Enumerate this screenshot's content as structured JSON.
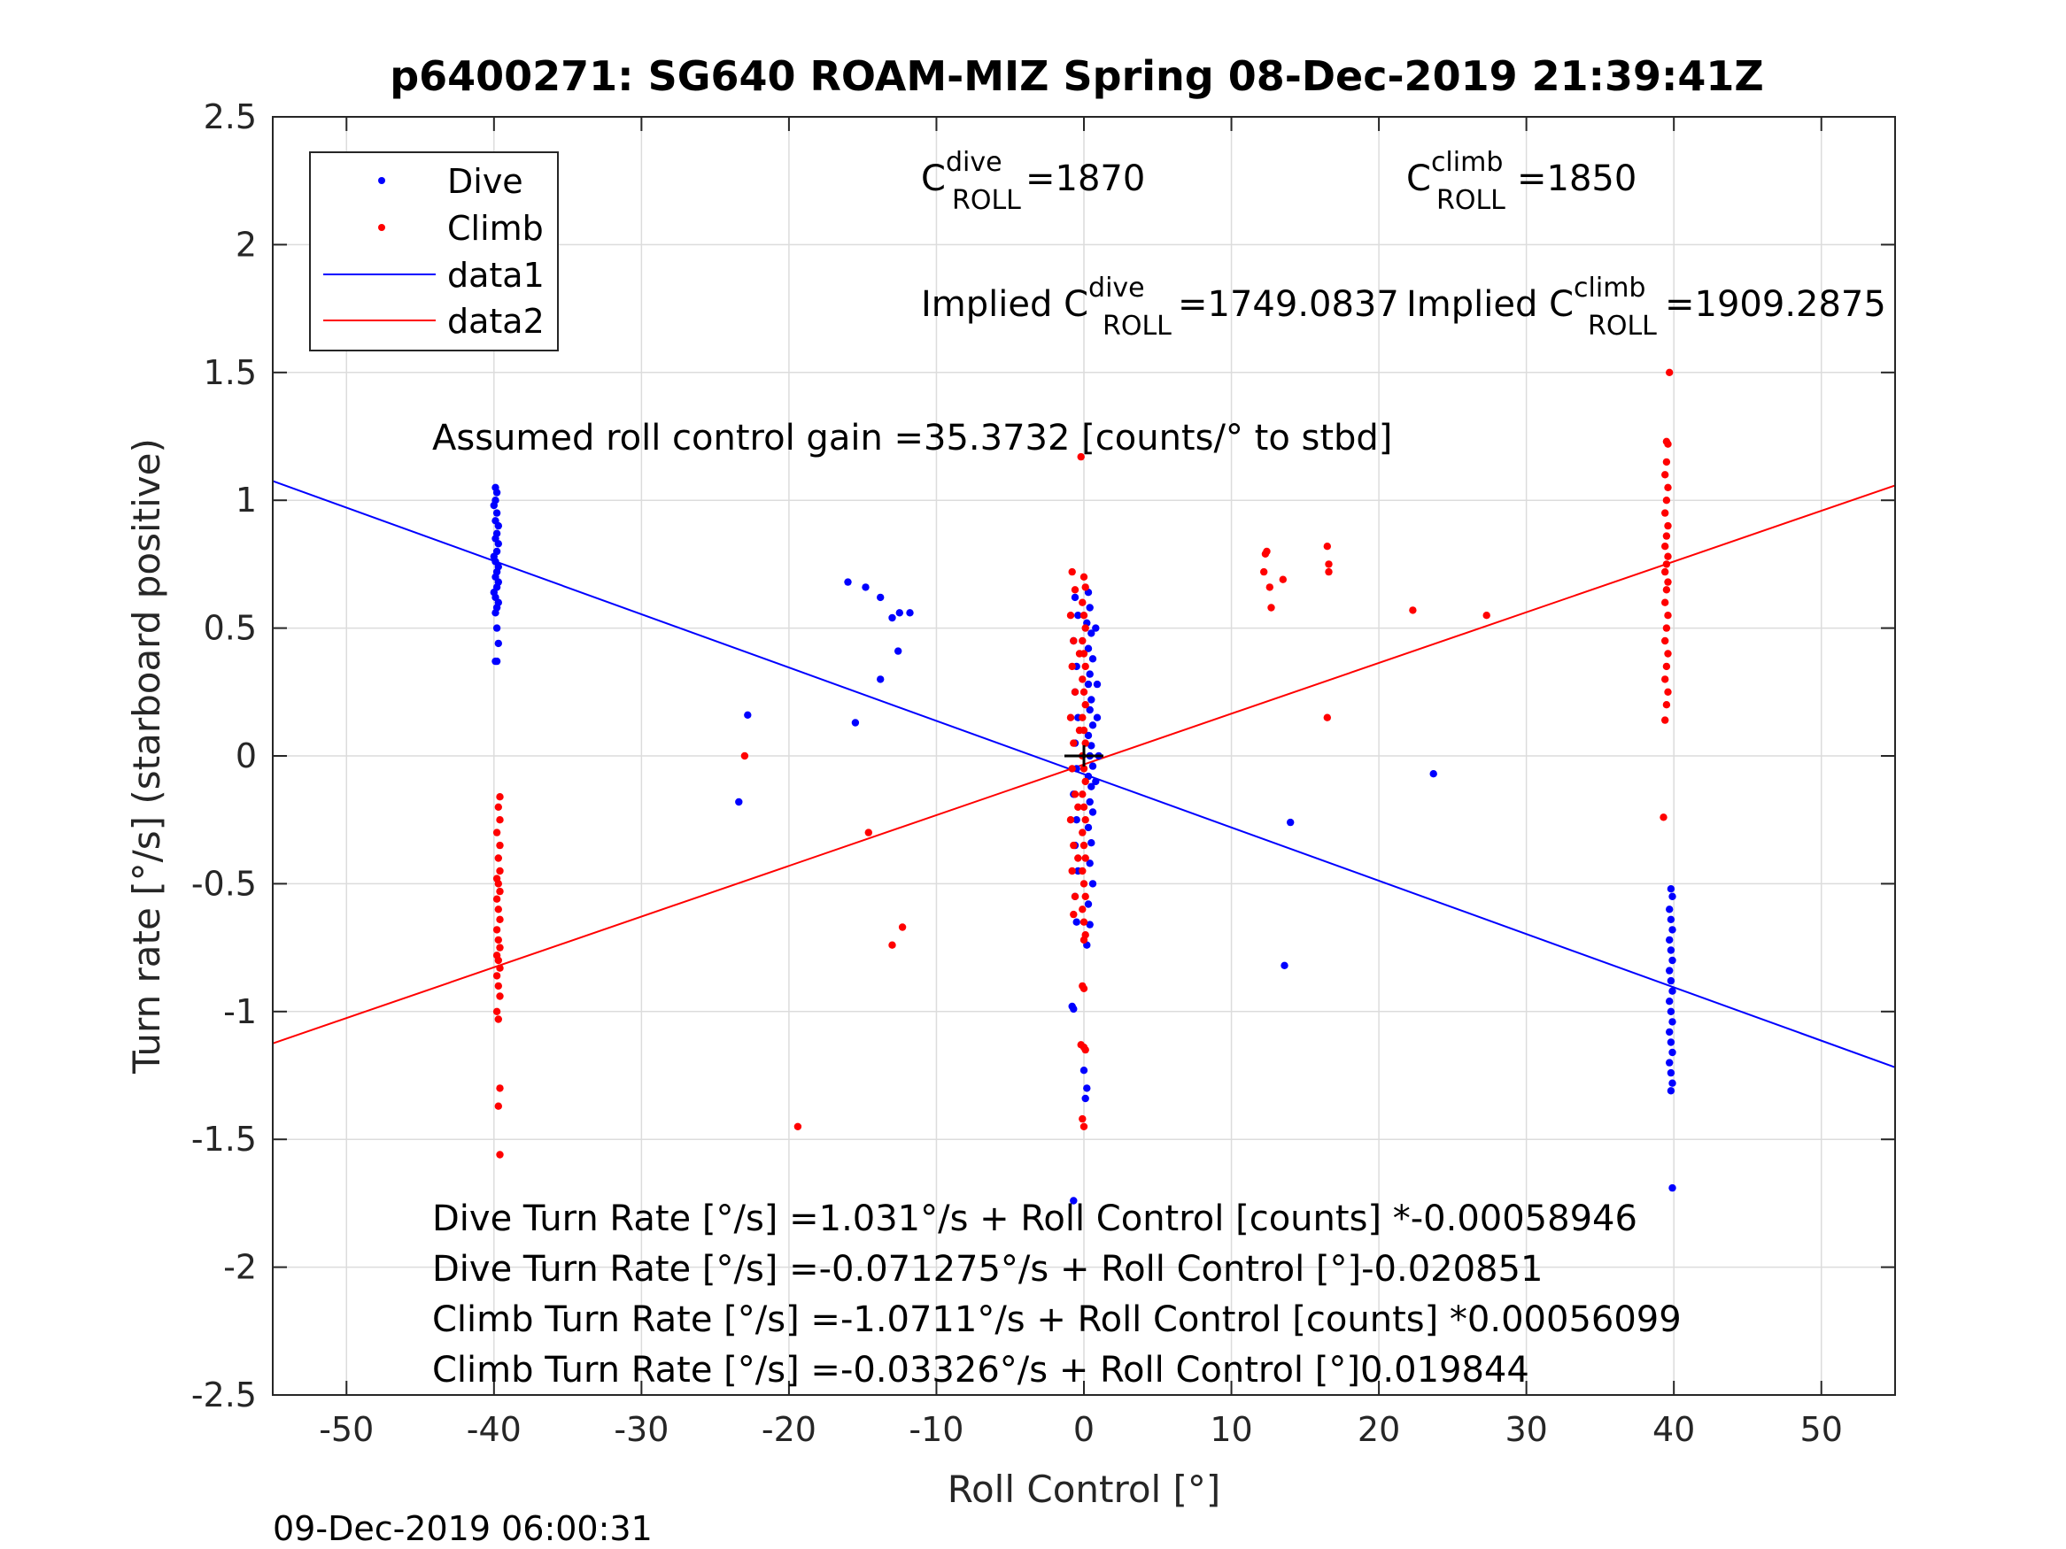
{
  "chart_data": {
    "type": "scatter",
    "title": "p6400271: SG640 ROAM-MIZ Spring 08-Dec-2019 21:39:41Z",
    "xlabel": "Roll Control [°]",
    "ylabel": "Turn rate [°/s] (starboard positive)",
    "xlim": [
      -55,
      55
    ],
    "ylim": [
      -2.5,
      2.5
    ],
    "xticks": [
      -50,
      -40,
      -30,
      -20,
      -10,
      0,
      10,
      20,
      30,
      40,
      50
    ],
    "xtick_labels": [
      "-50",
      "-40",
      "-30",
      "-20",
      "-10",
      "0",
      "10",
      "20",
      "30",
      "40",
      "50"
    ],
    "yticks": [
      -2.5,
      -2,
      -1.5,
      -1,
      -0.5,
      0,
      0.5,
      1,
      1.5,
      2,
      2.5
    ],
    "ytick_labels": [
      "-2.5",
      "-2",
      "-1.5",
      "-1",
      "-0.5",
      "0",
      "0.5",
      "1",
      "1.5",
      "2",
      "2.5"
    ],
    "grid": true,
    "legend_position": "top-left",
    "legend": [
      {
        "label": "Dive",
        "kind": "marker",
        "color": "#0000ff"
      },
      {
        "label": "Climb",
        "kind": "marker",
        "color": "#ff0000"
      },
      {
        "label": "data1",
        "kind": "line",
        "color": "#0000ff"
      },
      {
        "label": "data2",
        "kind": "line",
        "color": "#ff0000"
      }
    ],
    "series": [
      {
        "name": "Dive",
        "kind": "scatter",
        "color": "#0000ff",
        "points": [
          [
            -39.9,
            1.05
          ],
          [
            -39.8,
            1.03
          ],
          [
            -39.9,
            1.0
          ],
          [
            -40.0,
            0.98
          ],
          [
            -39.8,
            0.95
          ],
          [
            -39.9,
            0.92
          ],
          [
            -39.7,
            0.9
          ],
          [
            -39.8,
            0.87
          ],
          [
            -39.9,
            0.85
          ],
          [
            -39.7,
            0.83
          ],
          [
            -39.8,
            0.8
          ],
          [
            -40.0,
            0.78
          ],
          [
            -39.9,
            0.76
          ],
          [
            -39.7,
            0.74
          ],
          [
            -39.8,
            0.72
          ],
          [
            -39.9,
            0.7
          ],
          [
            -39.7,
            0.68
          ],
          [
            -39.8,
            0.66
          ],
          [
            -40.0,
            0.64
          ],
          [
            -39.9,
            0.62
          ],
          [
            -39.7,
            0.6
          ],
          [
            -39.8,
            0.58
          ],
          [
            -39.9,
            0.56
          ],
          [
            -39.8,
            0.5
          ],
          [
            -39.7,
            0.44
          ],
          [
            -39.9,
            0.37
          ],
          [
            -39.8,
            0.37
          ],
          [
            -16.0,
            0.68
          ],
          [
            -14.8,
            0.66
          ],
          [
            -13.8,
            0.62
          ],
          [
            -13.0,
            0.54
          ],
          [
            -12.5,
            0.56
          ],
          [
            -11.8,
            0.56
          ],
          [
            -12.6,
            0.41
          ],
          [
            -13.8,
            0.3
          ],
          [
            -15.5,
            0.13
          ],
          [
            -22.8,
            0.16
          ],
          [
            -23.4,
            -0.18
          ],
          [
            -0.6,
            0.62
          ],
          [
            -0.4,
            0.55
          ],
          [
            -0.7,
            0.45
          ],
          [
            -0.5,
            0.35
          ],
          [
            -0.6,
            0.25
          ],
          [
            -0.4,
            0.15
          ],
          [
            -0.6,
            0.05
          ],
          [
            -0.5,
            -0.05
          ],
          [
            -0.7,
            -0.15
          ],
          [
            -0.5,
            -0.25
          ],
          [
            -0.6,
            -0.35
          ],
          [
            -0.4,
            -0.45
          ],
          [
            -0.6,
            -0.55
          ],
          [
            -0.5,
            -0.65
          ],
          [
            0.3,
            0.64
          ],
          [
            0.4,
            0.58
          ],
          [
            0.2,
            0.52
          ],
          [
            0.5,
            0.48
          ],
          [
            0.3,
            0.42
          ],
          [
            0.6,
            0.38
          ],
          [
            0.4,
            0.32
          ],
          [
            0.3,
            0.28
          ],
          [
            0.5,
            0.22
          ],
          [
            0.4,
            0.18
          ],
          [
            0.6,
            0.12
          ],
          [
            0.3,
            0.08
          ],
          [
            0.5,
            0.04
          ],
          [
            0.4,
            0.0
          ],
          [
            0.6,
            -0.04
          ],
          [
            0.3,
            -0.08
          ],
          [
            0.5,
            -0.12
          ],
          [
            0.4,
            -0.18
          ],
          [
            0.6,
            -0.22
          ],
          [
            0.3,
            -0.28
          ],
          [
            0.5,
            -0.34
          ],
          [
            0.4,
            -0.42
          ],
          [
            0.6,
            -0.5
          ],
          [
            0.3,
            -0.58
          ],
          [
            0.4,
            -0.66
          ],
          [
            0.2,
            -0.74
          ],
          [
            0.8,
            0.5
          ],
          [
            0.9,
            0.28
          ],
          [
            0.8,
            -0.1
          ],
          [
            0.9,
            0.15
          ],
          [
            1.0,
            0.0
          ],
          [
            -0.8,
            -0.98
          ],
          [
            -0.7,
            -0.99
          ],
          [
            0.0,
            -1.23
          ],
          [
            0.2,
            -1.3
          ],
          [
            0.1,
            -1.34
          ],
          [
            -0.7,
            -1.74
          ],
          [
            23.7,
            -0.07
          ],
          [
            14.0,
            -0.26
          ],
          [
            13.6,
            -0.82
          ],
          [
            39.8,
            -0.52
          ],
          [
            39.9,
            -0.55
          ],
          [
            39.7,
            -0.6
          ],
          [
            39.8,
            -0.64
          ],
          [
            39.9,
            -0.68
          ],
          [
            39.7,
            -0.72
          ],
          [
            39.8,
            -0.76
          ],
          [
            39.9,
            -0.8
          ],
          [
            39.7,
            -0.84
          ],
          [
            39.8,
            -0.88
          ],
          [
            39.9,
            -0.92
          ],
          [
            39.7,
            -0.96
          ],
          [
            39.8,
            -1.0
          ],
          [
            39.9,
            -1.04
          ],
          [
            39.7,
            -1.08
          ],
          [
            39.8,
            -1.12
          ],
          [
            39.9,
            -1.16
          ],
          [
            39.7,
            -1.2
          ],
          [
            39.8,
            -1.24
          ],
          [
            39.9,
            -1.28
          ],
          [
            39.8,
            -1.31
          ],
          [
            39.9,
            -1.69
          ]
        ]
      },
      {
        "name": "Climb",
        "kind": "scatter",
        "color": "#ff0000",
        "points": [
          [
            -39.6,
            -0.16
          ],
          [
            -39.7,
            -0.2
          ],
          [
            -39.6,
            -0.25
          ],
          [
            -39.8,
            -0.3
          ],
          [
            -39.6,
            -0.35
          ],
          [
            -39.7,
            -0.4
          ],
          [
            -39.6,
            -0.45
          ],
          [
            -39.8,
            -0.48
          ],
          [
            -39.7,
            -0.5
          ],
          [
            -39.6,
            -0.53
          ],
          [
            -39.8,
            -0.56
          ],
          [
            -39.7,
            -0.6
          ],
          [
            -39.6,
            -0.64
          ],
          [
            -39.8,
            -0.68
          ],
          [
            -39.7,
            -0.72
          ],
          [
            -39.6,
            -0.75
          ],
          [
            -39.8,
            -0.78
          ],
          [
            -39.7,
            -0.8
          ],
          [
            -39.6,
            -0.83
          ],
          [
            -39.8,
            -0.86
          ],
          [
            -39.7,
            -0.9
          ],
          [
            -39.6,
            -0.94
          ],
          [
            -39.8,
            -1.0
          ],
          [
            -39.7,
            -1.03
          ],
          [
            -39.6,
            -1.3
          ],
          [
            -39.7,
            -1.37
          ],
          [
            -39.6,
            -1.56
          ],
          [
            -23.0,
            0.0
          ],
          [
            -14.6,
            -0.3
          ],
          [
            -13.0,
            -0.74
          ],
          [
            -12.3,
            -0.67
          ],
          [
            -19.4,
            -1.45
          ],
          [
            -0.8,
            0.72
          ],
          [
            -0.6,
            0.65
          ],
          [
            -0.9,
            0.55
          ],
          [
            -0.7,
            0.45
          ],
          [
            -0.8,
            0.35
          ],
          [
            -0.6,
            0.25
          ],
          [
            -0.9,
            0.15
          ],
          [
            -0.7,
            0.05
          ],
          [
            -0.8,
            -0.05
          ],
          [
            -0.6,
            -0.15
          ],
          [
            -0.9,
            -0.25
          ],
          [
            -0.7,
            -0.35
          ],
          [
            -0.8,
            -0.45
          ],
          [
            -0.6,
            -0.55
          ],
          [
            -0.7,
            -0.62
          ],
          [
            0.0,
            0.7
          ],
          [
            0.1,
            0.66
          ],
          [
            -0.1,
            0.6
          ],
          [
            0.0,
            0.55
          ],
          [
            0.1,
            0.5
          ],
          [
            -0.1,
            0.45
          ],
          [
            0.0,
            0.4
          ],
          [
            0.1,
            0.35
          ],
          [
            -0.1,
            0.3
          ],
          [
            0.0,
            0.25
          ],
          [
            0.1,
            0.2
          ],
          [
            -0.1,
            0.15
          ],
          [
            0.0,
            0.1
          ],
          [
            0.1,
            0.05
          ],
          [
            -0.1,
            0.0
          ],
          [
            0.0,
            -0.05
          ],
          [
            0.1,
            -0.1
          ],
          [
            -0.1,
            -0.15
          ],
          [
            0.0,
            -0.2
          ],
          [
            0.1,
            -0.25
          ],
          [
            -0.1,
            -0.3
          ],
          [
            0.0,
            -0.35
          ],
          [
            0.1,
            -0.4
          ],
          [
            -0.1,
            -0.45
          ],
          [
            0.0,
            -0.5
          ],
          [
            0.1,
            -0.55
          ],
          [
            -0.1,
            -0.6
          ],
          [
            0.0,
            -0.65
          ],
          [
            0.1,
            -0.7
          ],
          [
            0.0,
            -0.72
          ],
          [
            -0.3,
            0.1
          ],
          [
            -0.4,
            -0.2
          ],
          [
            -0.3,
            0.4
          ],
          [
            -0.4,
            -0.4
          ],
          [
            -0.2,
            1.17
          ],
          [
            -0.1,
            -0.9
          ],
          [
            0.0,
            -0.91
          ],
          [
            -0.2,
            -1.13
          ],
          [
            0.0,
            -1.14
          ],
          [
            0.1,
            -1.15
          ],
          [
            -0.1,
            -1.42
          ],
          [
            0.0,
            -1.45
          ],
          [
            12.3,
            0.79
          ],
          [
            12.4,
            0.8
          ],
          [
            12.2,
            0.72
          ],
          [
            12.6,
            0.66
          ],
          [
            13.5,
            0.69
          ],
          [
            12.7,
            0.58
          ],
          [
            16.5,
            0.82
          ],
          [
            16.6,
            0.75
          ],
          [
            16.6,
            0.72
          ],
          [
            16.5,
            0.15
          ],
          [
            22.3,
            0.57
          ],
          [
            27.3,
            0.55
          ],
          [
            39.7,
            1.5
          ],
          [
            39.5,
            1.23
          ],
          [
            39.6,
            1.22
          ],
          [
            39.5,
            1.15
          ],
          [
            39.4,
            1.1
          ],
          [
            39.6,
            1.05
          ],
          [
            39.5,
            1.0
          ],
          [
            39.4,
            0.95
          ],
          [
            39.6,
            0.9
          ],
          [
            39.5,
            0.86
          ],
          [
            39.4,
            0.82
          ],
          [
            39.6,
            0.78
          ],
          [
            39.5,
            0.75
          ],
          [
            39.4,
            0.72
          ],
          [
            39.6,
            0.68
          ],
          [
            39.5,
            0.65
          ],
          [
            39.4,
            0.6
          ],
          [
            39.6,
            0.55
          ],
          [
            39.5,
            0.5
          ],
          [
            39.4,
            0.45
          ],
          [
            39.6,
            0.4
          ],
          [
            39.5,
            0.35
          ],
          [
            39.4,
            0.3
          ],
          [
            39.6,
            0.25
          ],
          [
            39.5,
            0.2
          ],
          [
            39.4,
            0.14
          ],
          [
            39.3,
            -0.24
          ]
        ]
      },
      {
        "name": "data1",
        "kind": "line",
        "color": "#0000ff",
        "x": [
          -55,
          55
        ],
        "y": [
          1.0755,
          -1.2181
        ]
      },
      {
        "name": "data2",
        "kind": "line",
        "color": "#ff0000",
        "x": [
          -55,
          55
        ],
        "y": [
          -1.1247,
          1.0582
        ]
      }
    ],
    "center_marker": {
      "x": 0,
      "y": 0,
      "color": "#000000"
    },
    "annotations": {
      "c_dive_main": "C",
      "c_dive_sup": "dive",
      "c_dive_sub": "ROLL",
      "c_dive_value": " =1870",
      "c_climb_main": "C",
      "c_climb_sup": "climb",
      "c_climb_sub": "ROLL",
      "c_climb_value": " =1850",
      "implied_dive_main": "Implied C",
      "implied_dive_sup": "dive",
      "implied_dive_sub": "ROLL",
      "implied_dive_value": " =1749.0837",
      "implied_climb_main": "Implied C",
      "implied_climb_sup": "climb",
      "implied_climb_sub": "ROLL",
      "implied_climb_value": " =1909.2875",
      "gain": "Assumed roll control gain =35.3732 [counts/° to stbd]",
      "eq1": "Dive Turn Rate [°/s] =1.031°/s + Roll Control [counts] *-0.00058946",
      "eq2": "Dive Turn Rate [°/s] =-0.071275°/s + Roll Control [°]-0.020851",
      "eq3": "Climb Turn Rate [°/s] =-1.0711°/s + Roll Control [counts] *0.00056099",
      "eq4": "Climb Turn Rate [°/s] =-0.03326°/s + Roll Control [°]0.019844"
    }
  },
  "footer": {
    "timestamp": "09-Dec-2019 06:00:31"
  }
}
